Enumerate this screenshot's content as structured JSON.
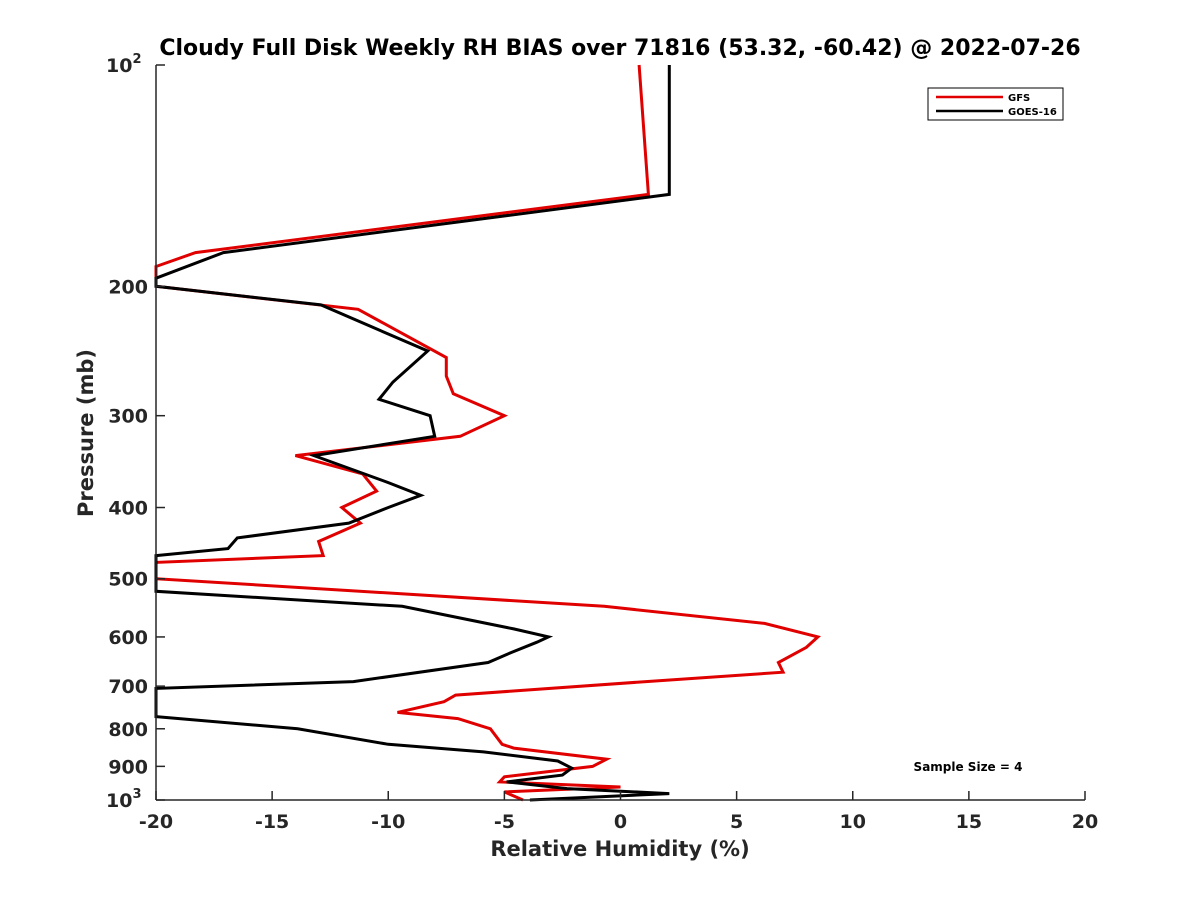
{
  "chart_data": {
    "type": "line",
    "title": "Cloudy Full Disk Weekly RH BIAS over 71816 (53.32, -60.42) @ 2022-07-26",
    "xlabel": "Relative Humidity (%)",
    "ylabel": "Pressure (mb)",
    "xlim": [
      -20,
      20
    ],
    "ylim": [
      100,
      1000
    ],
    "y_scale": "log",
    "y_reversed": true,
    "x_ticks": [
      -20,
      -15,
      -10,
      -5,
      0,
      5,
      10,
      15,
      20
    ],
    "x_tick_labels": [
      "-20",
      "-15",
      "-10",
      "-5",
      "0",
      "5",
      "10",
      "15",
      "20"
    ],
    "y_ticks": [
      {
        "value": 100,
        "label": "10",
        "exponent": "2"
      },
      {
        "value": 200,
        "label": "200"
      },
      {
        "value": 300,
        "label": "300"
      },
      {
        "value": 400,
        "label": "400"
      },
      {
        "value": 500,
        "label": "500"
      },
      {
        "value": 600,
        "label": "600"
      },
      {
        "value": 700,
        "label": "700"
      },
      {
        "value": 800,
        "label": "800"
      },
      {
        "value": 900,
        "label": "900"
      },
      {
        "value": 1000,
        "label": "10",
        "exponent": "3"
      }
    ],
    "grid": false,
    "legend_position": "top-right",
    "annotation": "Sample Size = 4",
    "series": [
      {
        "name": "GFS",
        "color": "#e00000",
        "points": [
          [
            0.8,
            100
          ],
          [
            1.2,
            150
          ],
          [
            -18.3,
            180
          ],
          [
            -20,
            188
          ],
          [
            -20,
            200
          ],
          [
            -11.3,
            215
          ],
          [
            -7.5,
            250
          ],
          [
            -7.5,
            265
          ],
          [
            -7.2,
            280
          ],
          [
            -5,
            300
          ],
          [
            -6.9,
            320
          ],
          [
            -14,
            340
          ],
          [
            -11.1,
            360
          ],
          [
            -10.5,
            380
          ],
          [
            -12,
            400
          ],
          [
            -11.2,
            420
          ],
          [
            -13,
            445
          ],
          [
            -12.8,
            465
          ],
          [
            -20,
            475
          ],
          [
            -20,
            500
          ],
          [
            -0.7,
            545
          ],
          [
            6.2,
            575
          ],
          [
            8.5,
            600
          ],
          [
            8.0,
            620
          ],
          [
            6.8,
            650
          ],
          [
            7.0,
            670
          ],
          [
            1.1,
            690
          ],
          [
            -7.1,
            720
          ],
          [
            -7.6,
            735
          ],
          [
            -9.6,
            760
          ],
          [
            -7.0,
            775
          ],
          [
            -5.6,
            800
          ],
          [
            -5.1,
            840
          ],
          [
            -4.6,
            850
          ],
          [
            -0.6,
            880
          ],
          [
            -1.2,
            900
          ],
          [
            -5.0,
            930
          ],
          [
            -5.2,
            945
          ],
          [
            0.0,
            960
          ],
          [
            -5.0,
            975
          ],
          [
            -4.2,
            1000
          ]
        ]
      },
      {
        "name": "GOES-16",
        "color": "#000000",
        "points": [
          [
            2.1,
            100
          ],
          [
            2.1,
            150
          ],
          [
            -17.1,
            180
          ],
          [
            -20,
            195
          ],
          [
            -20,
            200
          ],
          [
            -12.9,
            212
          ],
          [
            -8.3,
            245
          ],
          [
            -9.8,
            270
          ],
          [
            -10.4,
            285
          ],
          [
            -8.2,
            300
          ],
          [
            -8.0,
            320
          ],
          [
            -13.2,
            340
          ],
          [
            -10.0,
            370
          ],
          [
            -8.6,
            385
          ],
          [
            -10.0,
            400
          ],
          [
            -11.7,
            420
          ],
          [
            -16.5,
            440
          ],
          [
            -16.9,
            455
          ],
          [
            -20,
            465
          ],
          [
            -20,
            520
          ],
          [
            -9.4,
            545
          ],
          [
            -4.6,
            585
          ],
          [
            -3.1,
            600
          ],
          [
            -3.6,
            610
          ],
          [
            -4.7,
            630
          ],
          [
            -5.7,
            650
          ],
          [
            -11.5,
            690
          ],
          [
            -20,
            705
          ],
          [
            -20,
            770
          ],
          [
            -13.9,
            800
          ],
          [
            -10.0,
            840
          ],
          [
            -5.9,
            860
          ],
          [
            -2.7,
            885
          ],
          [
            -2.1,
            905
          ],
          [
            -2.5,
            925
          ],
          [
            -4.9,
            945
          ],
          [
            -2.3,
            965
          ],
          [
            2.1,
            980
          ],
          [
            -3.9,
            1000
          ]
        ]
      }
    ]
  }
}
